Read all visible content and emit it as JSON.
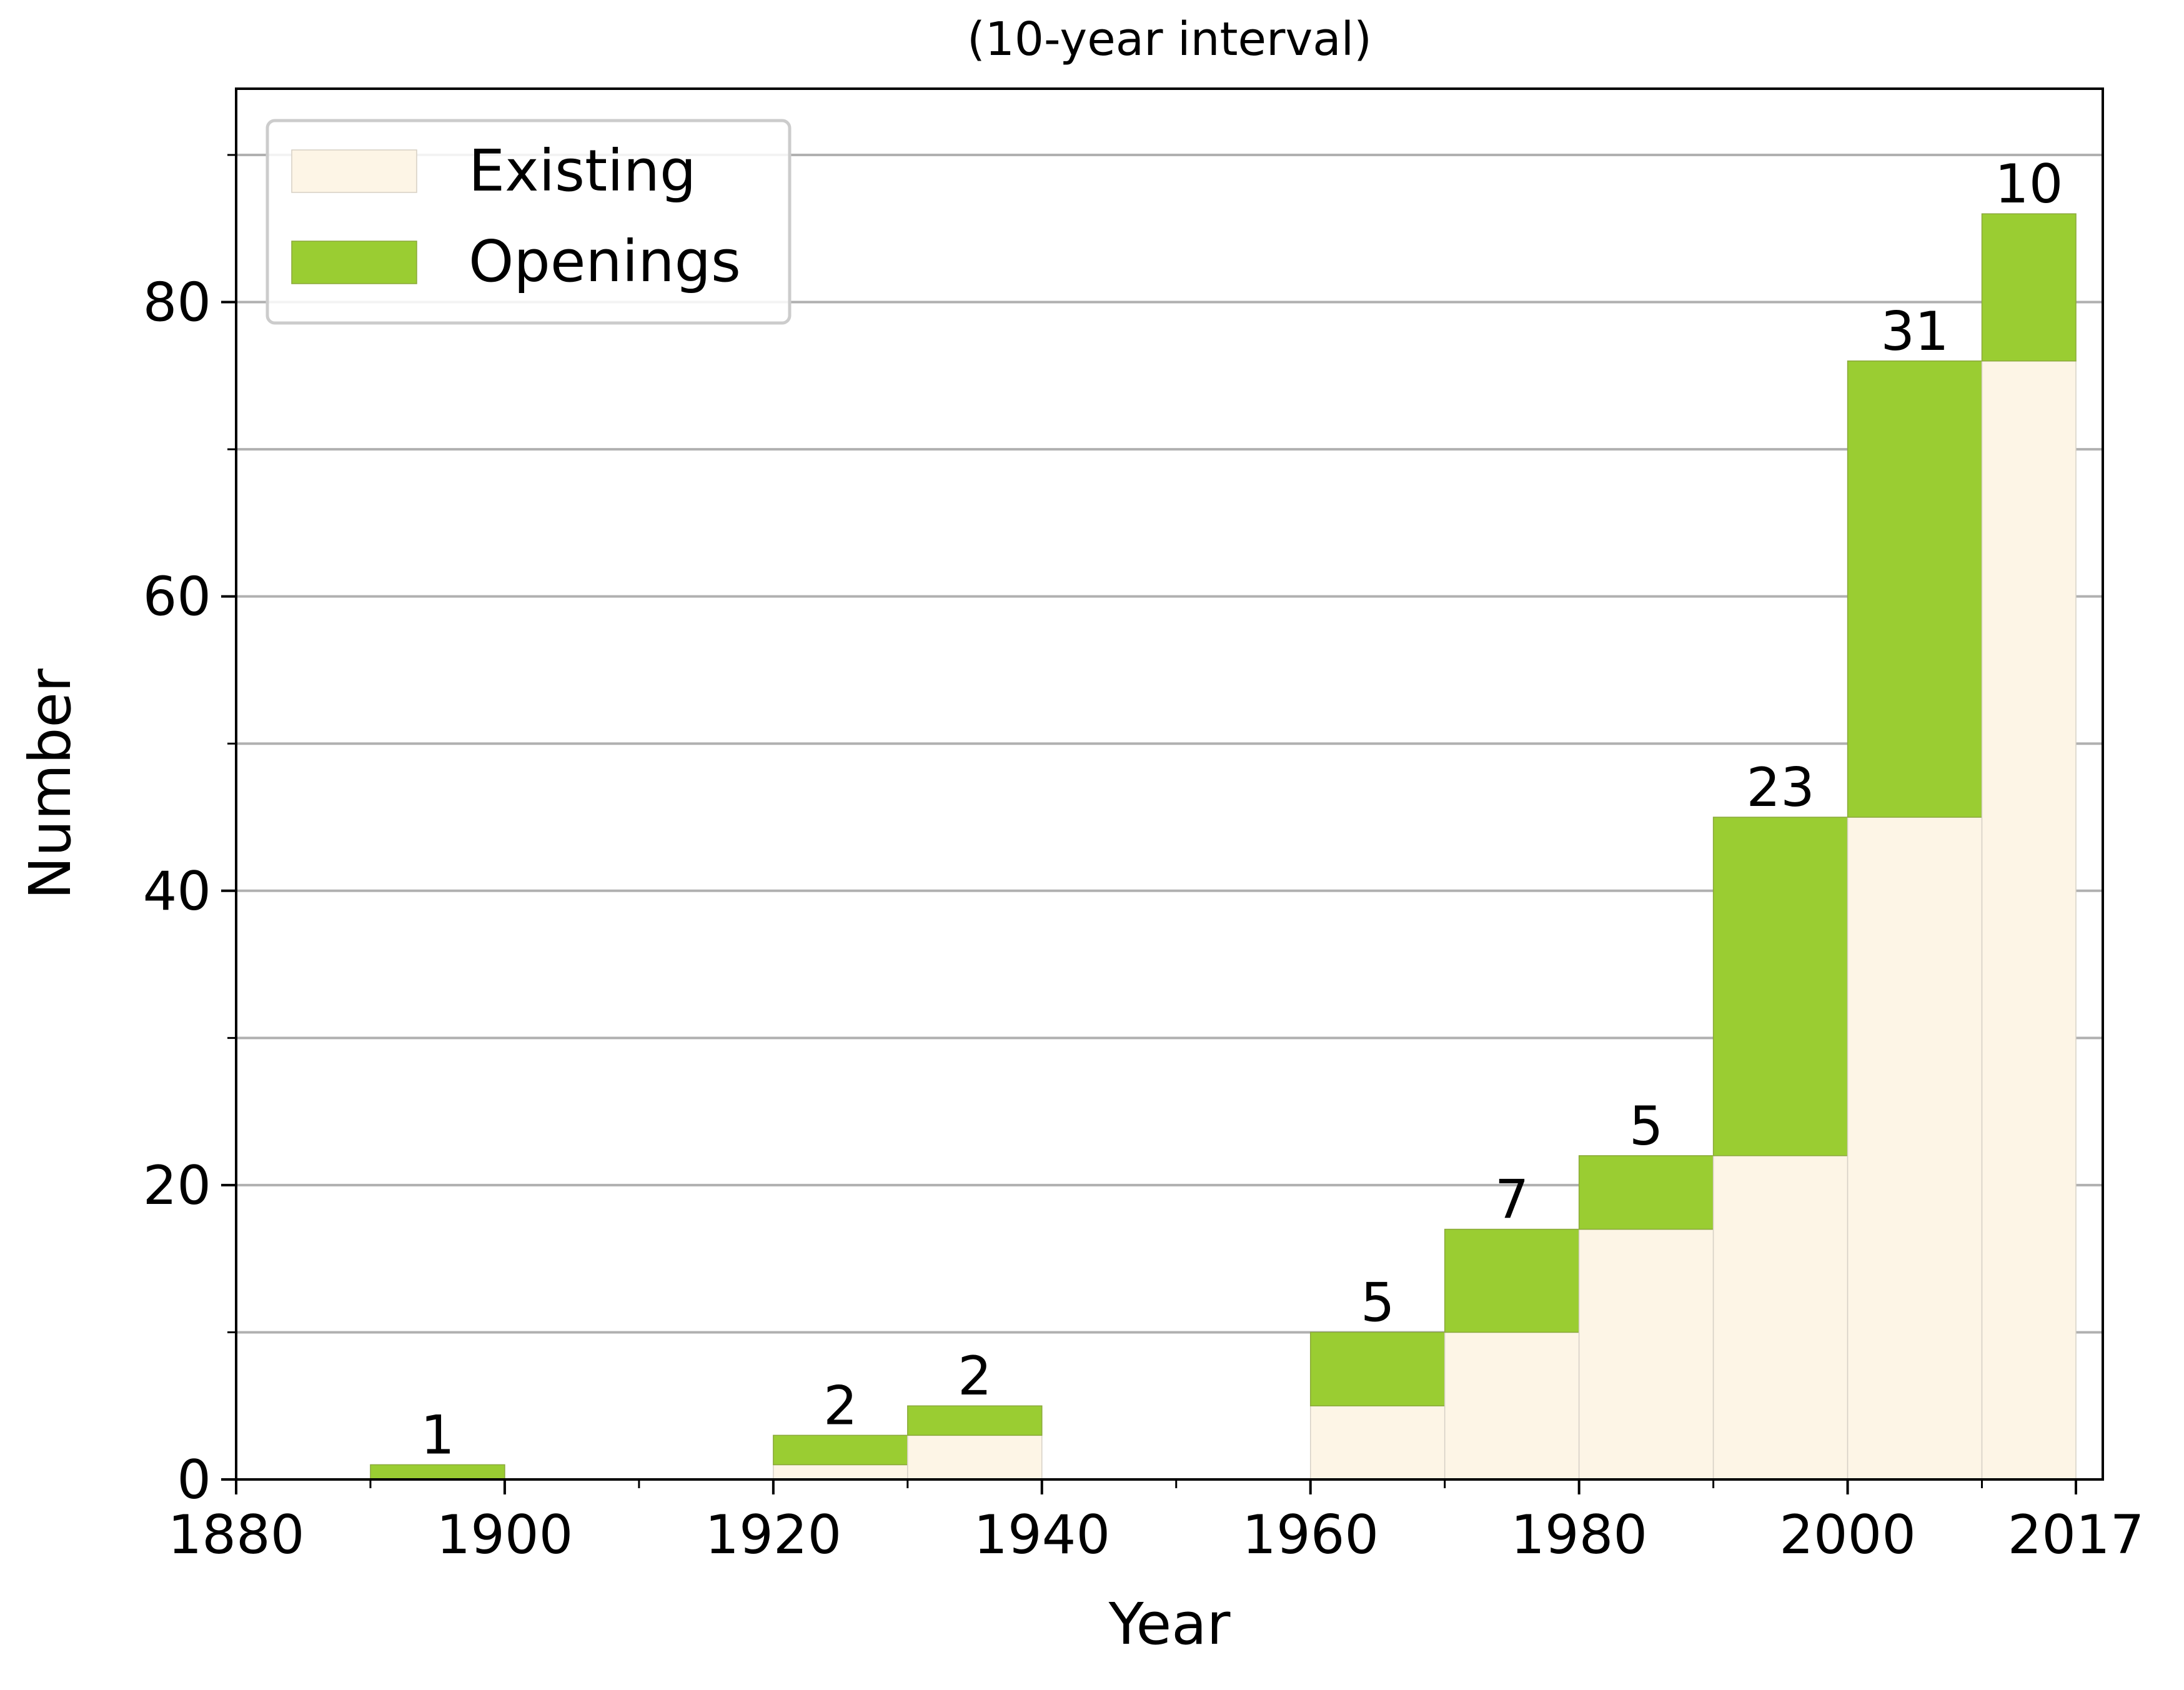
{
  "chart_data": {
    "type": "bar",
    "title": "(10-year interval)",
    "xlabel": "Year",
    "ylabel": "Number",
    "xlim": [
      1880,
      2019
    ],
    "ylim": [
      0,
      94.5
    ],
    "x_ticks": [
      {
        "value": 1880,
        "label": "1880"
      },
      {
        "value": 1900,
        "label": "1900"
      },
      {
        "value": 1920,
        "label": "1920"
      },
      {
        "value": 1940,
        "label": "1940"
      },
      {
        "value": 1960,
        "label": "1960"
      },
      {
        "value": 1980,
        "label": "1980"
      },
      {
        "value": 2000,
        "label": "2000"
      },
      {
        "value": 2017,
        "label": "2017"
      }
    ],
    "x_minor_ticks": [
      1890,
      1910,
      1930,
      1950,
      1970,
      1990,
      2010
    ],
    "y_ticks": [
      {
        "value": 0,
        "label": "0"
      },
      {
        "value": 20,
        "label": "20"
      },
      {
        "value": 40,
        "label": "40"
      },
      {
        "value": 60,
        "label": "60"
      },
      {
        "value": 80,
        "label": "80"
      }
    ],
    "y_minor_ticks": [
      10,
      30,
      50,
      70,
      90
    ],
    "grid": {
      "axis": "y",
      "lines": [
        10,
        20,
        30,
        40,
        50,
        60,
        70,
        80,
        90
      ]
    },
    "legend_position": "top-left",
    "bins": [
      {
        "start": 1890,
        "end": 1900,
        "existing": 0,
        "openings": 1,
        "label": "1"
      },
      {
        "start": 1920,
        "end": 1930,
        "existing": 1,
        "openings": 2,
        "label": "2"
      },
      {
        "start": 1930,
        "end": 1940,
        "existing": 3,
        "openings": 2,
        "label": "2"
      },
      {
        "start": 1960,
        "end": 1970,
        "existing": 5,
        "openings": 5,
        "label": "5"
      },
      {
        "start": 1970,
        "end": 1980,
        "existing": 10,
        "openings": 7,
        "label": "7"
      },
      {
        "start": 1980,
        "end": 1990,
        "existing": 17,
        "openings": 5,
        "label": "5"
      },
      {
        "start": 1990,
        "end": 2000,
        "existing": 22,
        "openings": 23,
        "label": "23"
      },
      {
        "start": 2000,
        "end": 2010,
        "existing": 45,
        "openings": 31,
        "label": "31"
      },
      {
        "start": 2010,
        "end": 2017,
        "existing": 76,
        "openings": 10,
        "label": "10"
      }
    ],
    "series": [
      {
        "name": "Existing",
        "color": "#fdf5e6"
      },
      {
        "name": "Openings",
        "color": "#9acd32"
      }
    ]
  }
}
